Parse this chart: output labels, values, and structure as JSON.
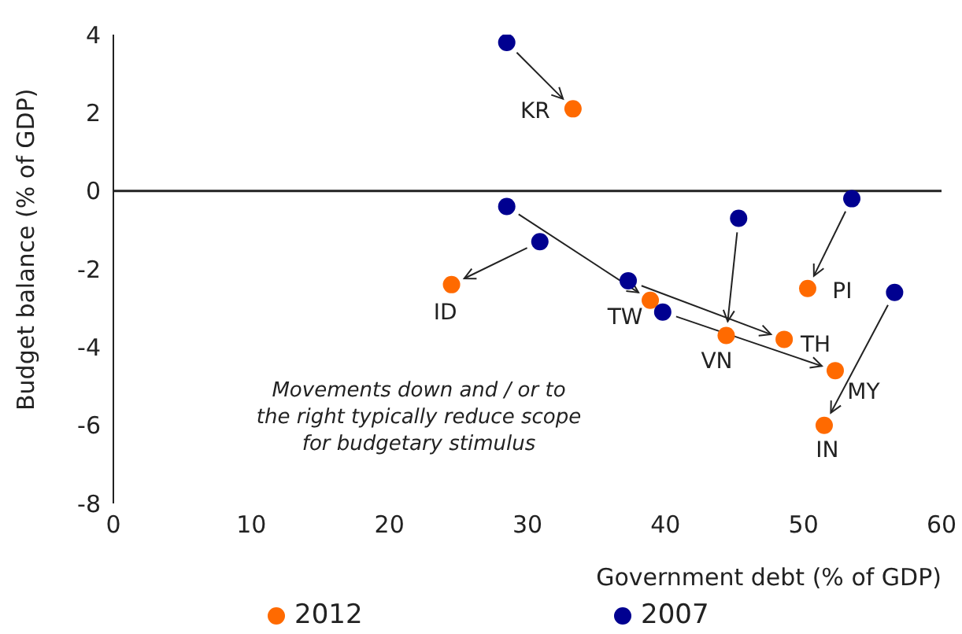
{
  "chart_data": {
    "type": "scatter",
    "xlabel": "Government debt (% of GDP)",
    "ylabel": "Budget balance (% of GDP)",
    "xlim": [
      0,
      60
    ],
    "xticks": [
      0,
      10,
      20,
      30,
      40,
      50,
      60
    ],
    "ylim": [
      -8,
      4
    ],
    "yticks": [
      -8,
      -6,
      -4,
      -2,
      0,
      2,
      4
    ],
    "series": [
      {
        "name": "2012",
        "color": "#ff6a00",
        "x": [
          33.3,
          24.5,
          38.9,
          44.4,
          48.6,
          52.3,
          50.3,
          51.5
        ],
        "values": [
          2.1,
          -2.4,
          -2.8,
          -3.7,
          -3.8,
          -4.6,
          -2.5,
          -6.0
        ]
      },
      {
        "name": "2007",
        "color": "#000090",
        "x": [
          28.5,
          30.9,
          28.5,
          45.3,
          37.3,
          39.8,
          53.5,
          56.6
        ],
        "values": [
          3.8,
          -1.3,
          -0.4,
          -0.7,
          -2.3,
          -3.1,
          -0.2,
          -2.6
        ]
      }
    ],
    "ref_lines": [
      {
        "axis": "y",
        "value": 0
      }
    ],
    "annotations": [
      {
        "text": "KR",
        "x": 33.3,
        "y": 2.1
      },
      {
        "text": "ID",
        "x": 24.5,
        "y": -2.4
      },
      {
        "text": "TW",
        "x": 38.9,
        "y": -2.8
      },
      {
        "text": "VN",
        "x": 44.4,
        "y": -3.7
      },
      {
        "text": "TH",
        "x": 48.6,
        "y": -3.8
      },
      {
        "text": "MY",
        "x": 52.3,
        "y": -4.6
      },
      {
        "text": "PI",
        "x": 50.3,
        "y": -2.5
      },
      {
        "text": "IN",
        "x": 51.5,
        "y": -6.0
      },
      "Movements down and / or to the right typically reduce scope for budgetary stimulus"
    ],
    "grid": false,
    "legend": "bottom",
    "marker": "circle"
  }
}
